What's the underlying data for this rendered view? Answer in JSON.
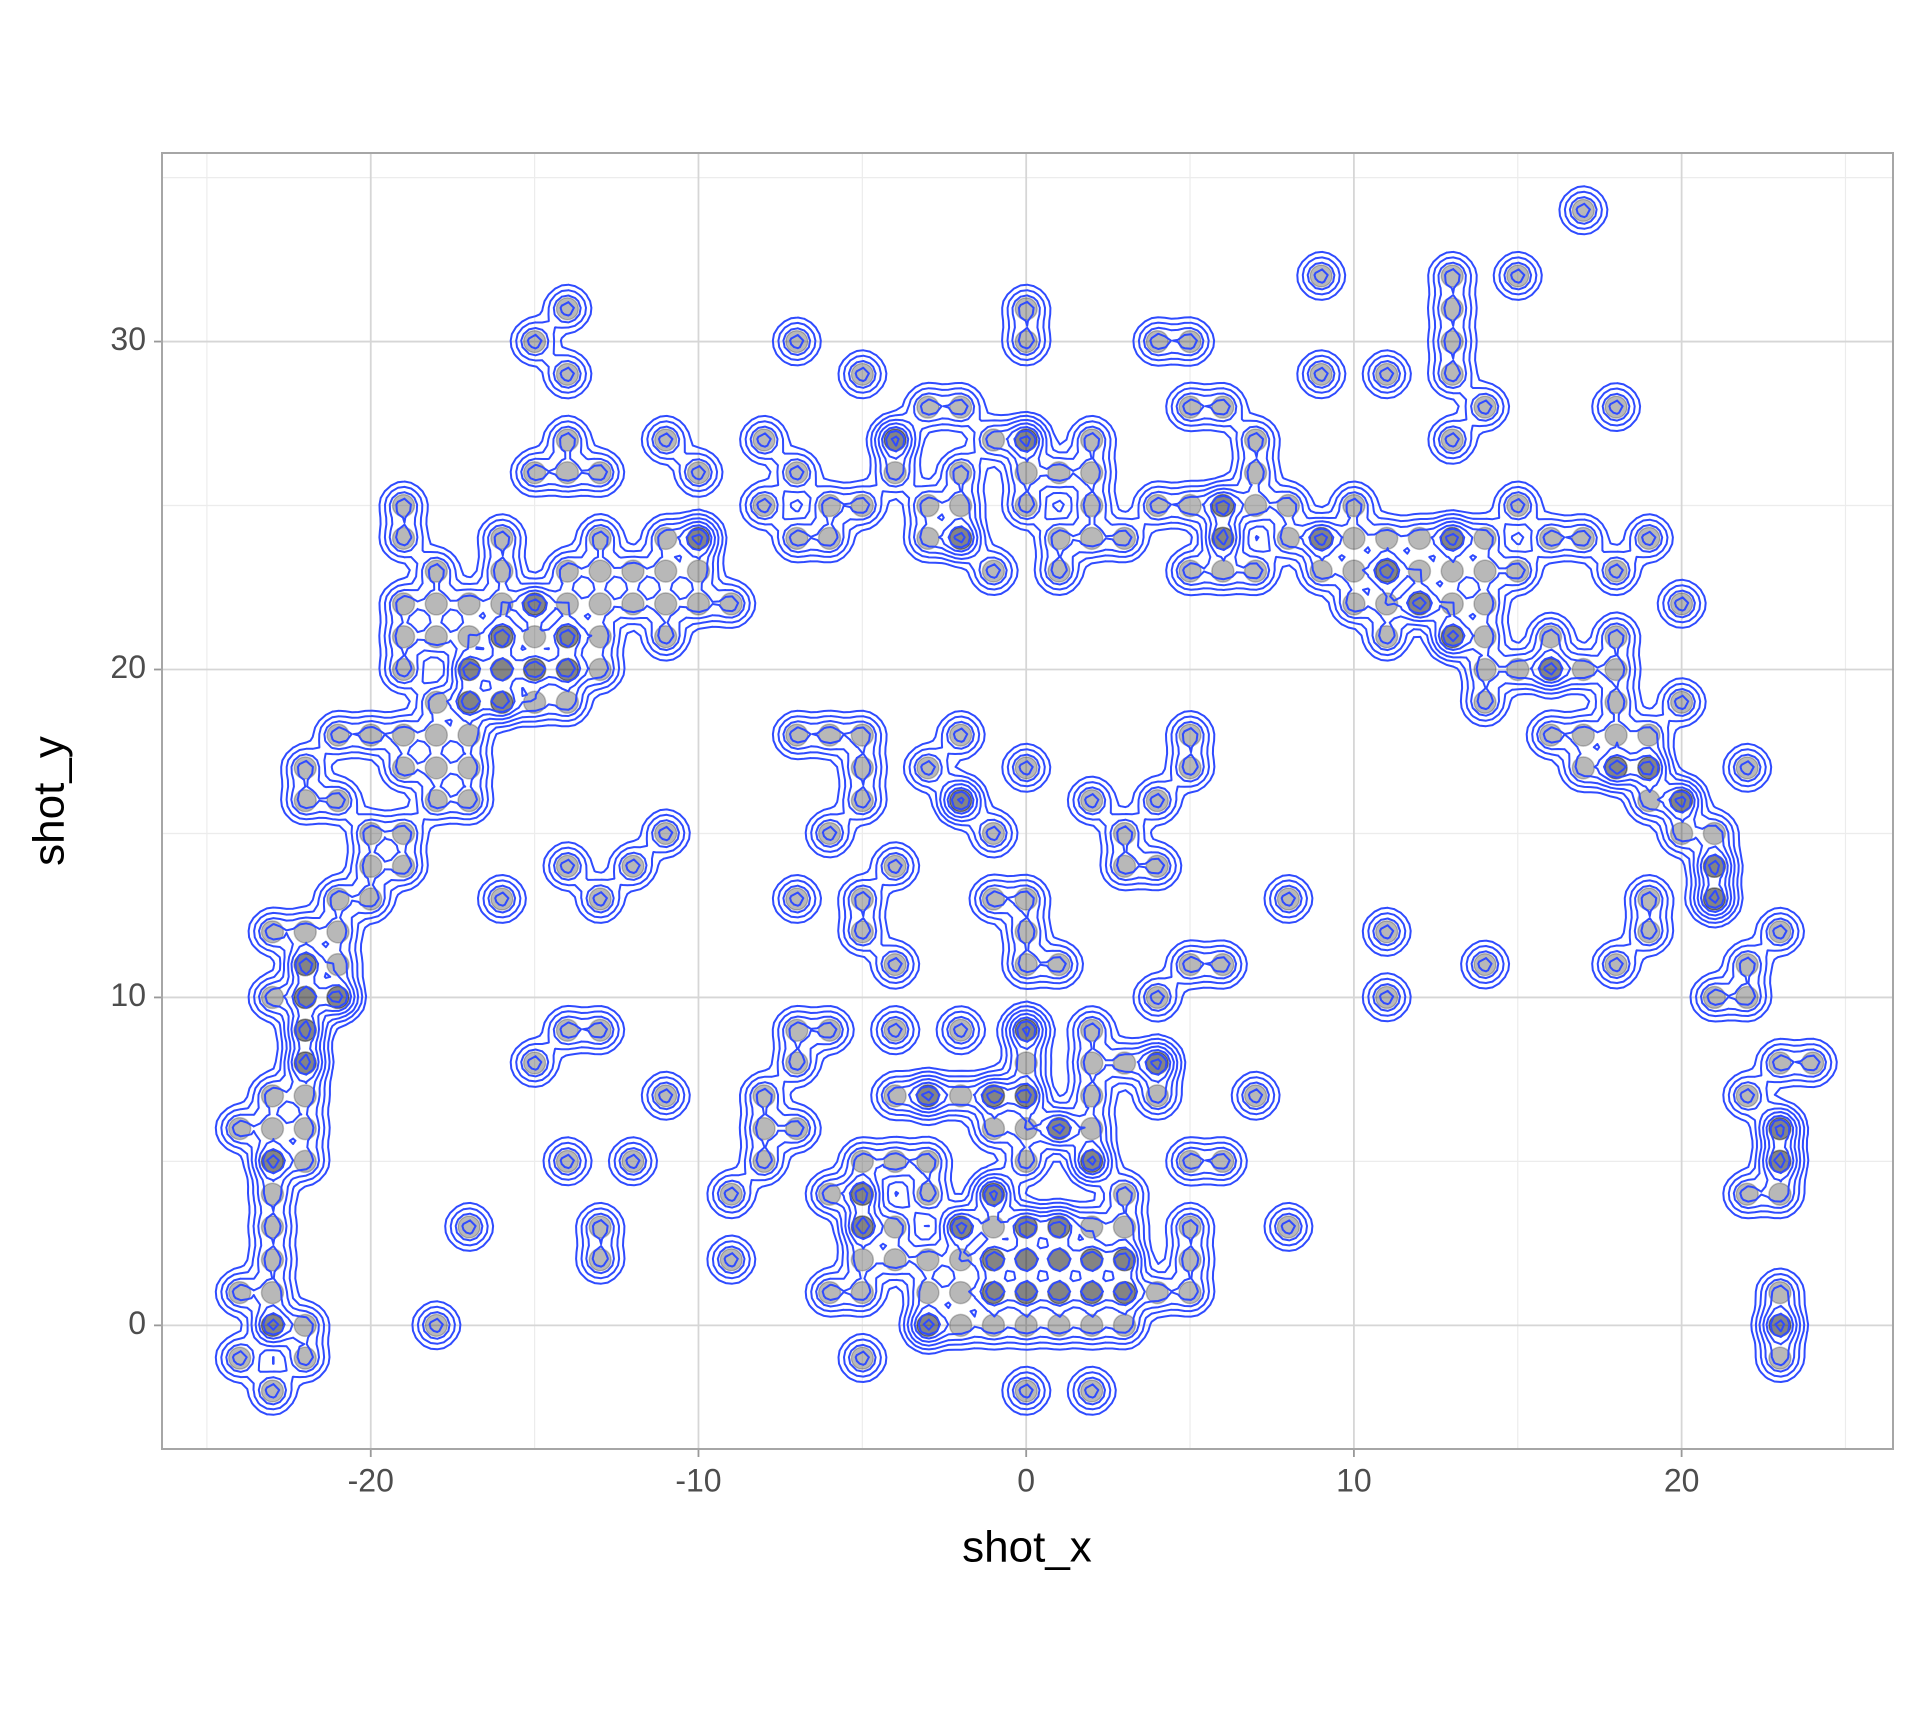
{
  "chart_data": {
    "type": "scatter",
    "xlabel": "shot_x",
    "ylabel": "shot_y",
    "color": "#000000",
    "opacity": 0.28,
    "contour_color": "#2f4bff",
    "grid": true,
    "xlim": [
      -26.37,
      26.45
    ],
    "ylim": [
      -3.77,
      35.75
    ],
    "xticks": [
      -20,
      -10,
      0,
      10,
      20
    ],
    "yticks": [
      0,
      10,
      20,
      30
    ],
    "xminor": [
      -25,
      -15,
      -5,
      5,
      15,
      25
    ],
    "yminor": [
      5,
      15,
      25,
      35
    ],
    "x": [
      17,
      9,
      13,
      15,
      -14,
      0,
      13,
      -15,
      -7,
      0,
      4,
      5,
      13,
      -14,
      -5,
      9,
      11,
      13,
      -3,
      -2,
      5,
      6,
      14,
      18,
      -14,
      -11,
      -8,
      -4,
      -1,
      0,
      2,
      7,
      13,
      -15,
      -14,
      -13,
      -10,
      -7,
      -4,
      -2,
      0,
      1,
      2,
      7,
      -19,
      -8,
      -6,
      -5,
      -3,
      -2,
      0,
      2,
      4,
      5,
      6,
      7,
      8,
      10,
      15,
      -19,
      -16,
      -13,
      -11,
      -10,
      -7,
      -6,
      -3,
      -2,
      1,
      2,
      3,
      6,
      8,
      9,
      10,
      11,
      12,
      13,
      14,
      16,
      17,
      19,
      -18,
      -16,
      -14,
      -13,
      -12,
      -11,
      -10,
      -1,
      1,
      5,
      6,
      7,
      9,
      10,
      11,
      12,
      13,
      14,
      15,
      18,
      -19,
      -18,
      -17,
      -16,
      -15,
      -14,
      -13,
      -12,
      -11,
      -10,
      -9,
      10,
      11,
      12,
      13,
      14,
      20,
      -19,
      -18,
      -17,
      -16,
      -15,
      -14,
      -13,
      -11,
      11,
      13,
      14,
      16,
      18,
      -19,
      -17,
      -16,
      -15,
      -14,
      -13,
      14,
      15,
      16,
      17,
      18,
      -18,
      -17,
      -16,
      -15,
      -14,
      14,
      18,
      20,
      -21,
      -20,
      -19,
      -18,
      -17,
      -7,
      -6,
      -5,
      -2,
      5,
      16,
      17,
      18,
      19,
      -22,
      -19,
      -18,
      -17,
      -5,
      -3,
      0,
      5,
      17,
      18,
      19,
      22,
      -22,
      -21,
      -18,
      -17,
      -5,
      -2,
      2,
      4,
      19,
      20,
      -20,
      -19,
      -11,
      -6,
      -1,
      3,
      20,
      21,
      -20,
      -19,
      -14,
      -12,
      -4,
      3,
      4,
      21,
      -21,
      -20,
      -16,
      -13,
      -7,
      -5,
      -1,
      0,
      8,
      19,
      21,
      -23,
      -22,
      -21,
      -5,
      0,
      11,
      19,
      23,
      -22,
      -21,
      -4,
      0,
      1,
      5,
      6,
      14,
      18,
      22,
      -23,
      -22,
      -21,
      4,
      11,
      21,
      22,
      -22,
      -14,
      -13,
      -7,
      -6,
      -4,
      -2,
      0,
      2,
      -22,
      -15,
      -7,
      0,
      2,
      3,
      4,
      23,
      24,
      -23,
      -22,
      -11,
      -8,
      -4,
      -3,
      -2,
      -1,
      0,
      2,
      4,
      7,
      22,
      -24,
      -23,
      -22,
      -8,
      -7,
      -1,
      0,
      1,
      2,
      23,
      -23,
      -22,
      -14,
      -12,
      -8,
      -5,
      -4,
      -3,
      0,
      2,
      5,
      6,
      23,
      -23,
      -9,
      -6,
      -5,
      -3,
      -1,
      3,
      22,
      23,
      -23,
      -17,
      -13,
      -5,
      -4,
      -2,
      -1,
      0,
      1,
      2,
      3,
      5,
      8,
      -23,
      -13,
      -9,
      -5,
      -4,
      -3,
      -2,
      -1,
      0,
      1,
      2,
      3,
      5,
      -24,
      -23,
      -6,
      -5,
      -3,
      -2,
      -1,
      0,
      1,
      2,
      3,
      4,
      5,
      23,
      -23,
      -22,
      -18,
      -3,
      -2,
      -1,
      0,
      1,
      2,
      3,
      23,
      -24,
      -22,
      -5,
      23,
      -23,
      0,
      2,
      -15,
      -14,
      -16,
      -17,
      -16,
      -15,
      -14,
      -16,
      -17,
      -22,
      -22,
      -21,
      -22,
      -22,
      -23,
      -23,
      -2,
      0,
      1,
      -1,
      0,
      1,
      2,
      3,
      -1,
      0,
      1,
      2,
      3,
      -3,
      -1,
      -1,
      0,
      0,
      -3,
      1,
      2,
      -5,
      -5,
      0,
      -2,
      -4,
      6,
      9,
      11,
      12,
      13,
      13,
      16,
      18,
      19,
      20,
      21,
      21,
      23,
      23,
      23,
      6,
      -10,
      4,
      -2
    ],
    "y": [
      34,
      32,
      32,
      32,
      31,
      31,
      31,
      30,
      30,
      30,
      30,
      30,
      30,
      29,
      29,
      29,
      29,
      29,
      28,
      28,
      28,
      28,
      28,
      28,
      27,
      27,
      27,
      27,
      27,
      27,
      27,
      27,
      27,
      26,
      26,
      26,
      26,
      26,
      26,
      26,
      26,
      26,
      26,
      26,
      25,
      25,
      25,
      25,
      25,
      25,
      25,
      25,
      25,
      25,
      25,
      25,
      25,
      25,
      25,
      24,
      24,
      24,
      24,
      24,
      24,
      24,
      24,
      24,
      24,
      24,
      24,
      24,
      24,
      24,
      24,
      24,
      24,
      24,
      24,
      24,
      24,
      24,
      23,
      23,
      23,
      23,
      23,
      23,
      23,
      23,
      23,
      23,
      23,
      23,
      23,
      23,
      23,
      23,
      23,
      23,
      23,
      23,
      22,
      22,
      22,
      22,
      22,
      22,
      22,
      22,
      22,
      22,
      22,
      22,
      22,
      22,
      22,
      22,
      22,
      21,
      21,
      21,
      21,
      21,
      21,
      21,
      21,
      21,
      21,
      21,
      21,
      21,
      20,
      20,
      20,
      20,
      20,
      20,
      20,
      20,
      20,
      20,
      20,
      19,
      19,
      19,
      19,
      19,
      19,
      19,
      19,
      18,
      18,
      18,
      18,
      18,
      18,
      18,
      18,
      18,
      18,
      18,
      18,
      18,
      18,
      17,
      17,
      17,
      17,
      17,
      17,
      17,
      17,
      17,
      17,
      17,
      17,
      16,
      16,
      16,
      16,
      16,
      16,
      16,
      16,
      16,
      16,
      15,
      15,
      15,
      15,
      15,
      15,
      15,
      15,
      14,
      14,
      14,
      14,
      14,
      14,
      14,
      14,
      13,
      13,
      13,
      13,
      13,
      13,
      13,
      13,
      13,
      13,
      13,
      12,
      12,
      12,
      12,
      12,
      12,
      12,
      12,
      11,
      11,
      11,
      11,
      11,
      11,
      11,
      11,
      11,
      11,
      10,
      10,
      10,
      10,
      10,
      10,
      10,
      9,
      9,
      9,
      9,
      9,
      9,
      9,
      9,
      9,
      8,
      8,
      8,
      8,
      8,
      8,
      8,
      8,
      8,
      7,
      7,
      7,
      7,
      7,
      7,
      7,
      7,
      7,
      7,
      7,
      7,
      7,
      6,
      6,
      6,
      6,
      6,
      6,
      6,
      6,
      6,
      6,
      5,
      5,
      5,
      5,
      5,
      5,
      5,
      5,
      5,
      5,
      5,
      5,
      5,
      4,
      4,
      4,
      4,
      4,
      4,
      4,
      4,
      4,
      3,
      3,
      3,
      3,
      3,
      3,
      3,
      3,
      3,
      3,
      3,
      3,
      3,
      2,
      2,
      2,
      2,
      2,
      2,
      2,
      2,
      2,
      2,
      2,
      2,
      2,
      1,
      1,
      1,
      1,
      1,
      1,
      1,
      1,
      1,
      1,
      1,
      1,
      1,
      1,
      0,
      0,
      0,
      0,
      0,
      0,
      0,
      0,
      0,
      0,
      0,
      -1,
      -1,
      -1,
      -1,
      -2,
      -2,
      -2,
      22,
      21,
      21,
      20,
      20,
      20,
      20,
      19,
      19,
      11,
      10,
      10,
      9,
      8,
      5,
      0,
      3,
      3,
      3,
      2,
      2,
      2,
      2,
      2,
      1,
      1,
      1,
      1,
      1,
      0,
      4,
      7,
      7,
      9,
      7,
      6,
      5,
      3,
      4,
      27,
      24,
      27,
      24,
      24,
      23,
      22,
      24,
      21,
      20,
      17,
      17,
      16,
      14,
      13,
      0,
      5,
      6,
      25,
      24,
      8,
      16
    ]
  }
}
